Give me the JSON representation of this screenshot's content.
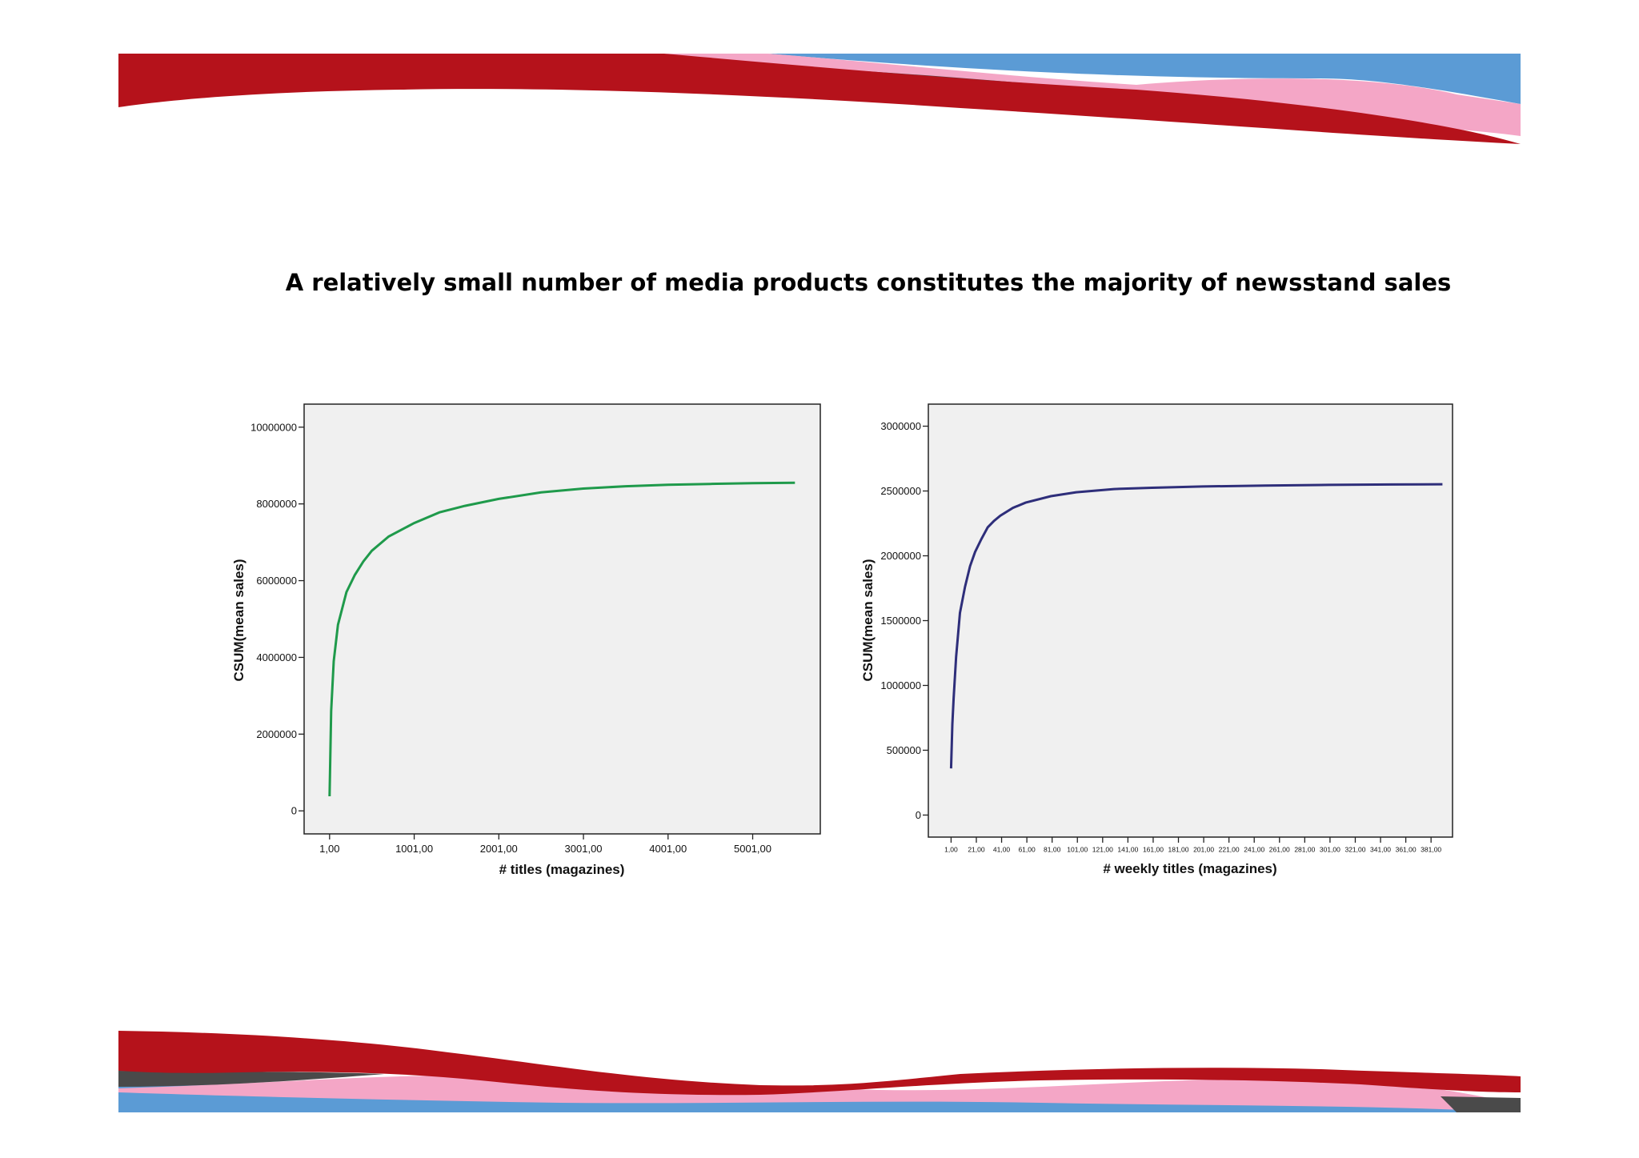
{
  "slide": {
    "title": "A relatively small number of media products constitutes the majority of newsstand sales"
  },
  "colors": {
    "red": "#b5121b",
    "blue": "#5b9bd5",
    "pink": "#f4a6c6",
    "dark": "#4a4a4a",
    "plot_bg": "#f0f0f0",
    "line_left": "#1f9a4b",
    "line_right": "#2e2e7a"
  },
  "chart_data": [
    {
      "type": "line",
      "xlabel": "# titles (magazines)",
      "ylabel": "CSUM(mean sales)",
      "xlim": [
        -300,
        5800
      ],
      "ylim": [
        -600000,
        10600000
      ],
      "xticks": [
        1,
        1001,
        2001,
        3001,
        4001,
        5001
      ],
      "xtick_labels": [
        "1,00",
        "1001,00",
        "2001,00",
        "3001,00",
        "4001,00",
        "5001,00"
      ],
      "yticks": [
        0,
        2000000,
        4000000,
        6000000,
        8000000,
        10000000
      ],
      "ytick_labels": [
        "0",
        "2000000",
        "4000000",
        "6000000",
        "8000000",
        "10000000"
      ],
      "grid": false,
      "series": [
        {
          "x": [
            1,
            20,
            50,
            100,
            200,
            300,
            400,
            500,
            700,
            1000,
            1300,
            1600,
            2000,
            2500,
            3000,
            3500,
            4000,
            4500,
            5000,
            5500
          ],
          "y": [
            380000,
            2600000,
            3900000,
            4850000,
            5700000,
            6150000,
            6500000,
            6780000,
            7150000,
            7500000,
            7780000,
            7950000,
            8130000,
            8300000,
            8400000,
            8460000,
            8500000,
            8520000,
            8540000,
            8550000
          ]
        }
      ]
    },
    {
      "type": "line",
      "xlabel": "# weekly titles (magazines)",
      "ylabel": "CSUM(mean sales)",
      "xlim": [
        -17,
        398
      ],
      "ylim": [
        -170000,
        3170000
      ],
      "xticks": [
        1,
        21,
        41,
        61,
        81,
        101,
        121,
        141,
        161,
        181,
        201,
        221,
        241,
        261,
        281,
        301,
        321,
        341,
        361,
        381
      ],
      "xtick_labels": [
        "1,00",
        "21,00",
        "41,00",
        "61,00",
        "81,00",
        "101,00",
        "121,00",
        "141,00",
        "161,00",
        "181,00",
        "201,00",
        "221,00",
        "241,00",
        "261,00",
        "281,00",
        "301,00",
        "321,00",
        "341,00",
        "361,00",
        "381,00"
      ],
      "yticks": [
        0,
        500000,
        1000000,
        1500000,
        2000000,
        2500000,
        3000000
      ],
      "ytick_labels": [
        "0",
        "500000",
        "1000000",
        "1500000",
        "2000000",
        "2500000",
        "3000000"
      ],
      "grid": false,
      "series": [
        {
          "x": [
            1,
            2,
            3,
            5,
            8,
            12,
            16,
            20,
            25,
            30,
            35,
            40,
            50,
            60,
            80,
            100,
            130,
            160,
            200,
            250,
            300,
            350,
            390
          ],
          "y": [
            360000,
            700000,
            900000,
            1220000,
            1560000,
            1760000,
            1920000,
            2030000,
            2130000,
            2220000,
            2270000,
            2310000,
            2370000,
            2410000,
            2460000,
            2490000,
            2515000,
            2525000,
            2535000,
            2542000,
            2547000,
            2550000,
            2552000
          ]
        }
      ]
    }
  ]
}
